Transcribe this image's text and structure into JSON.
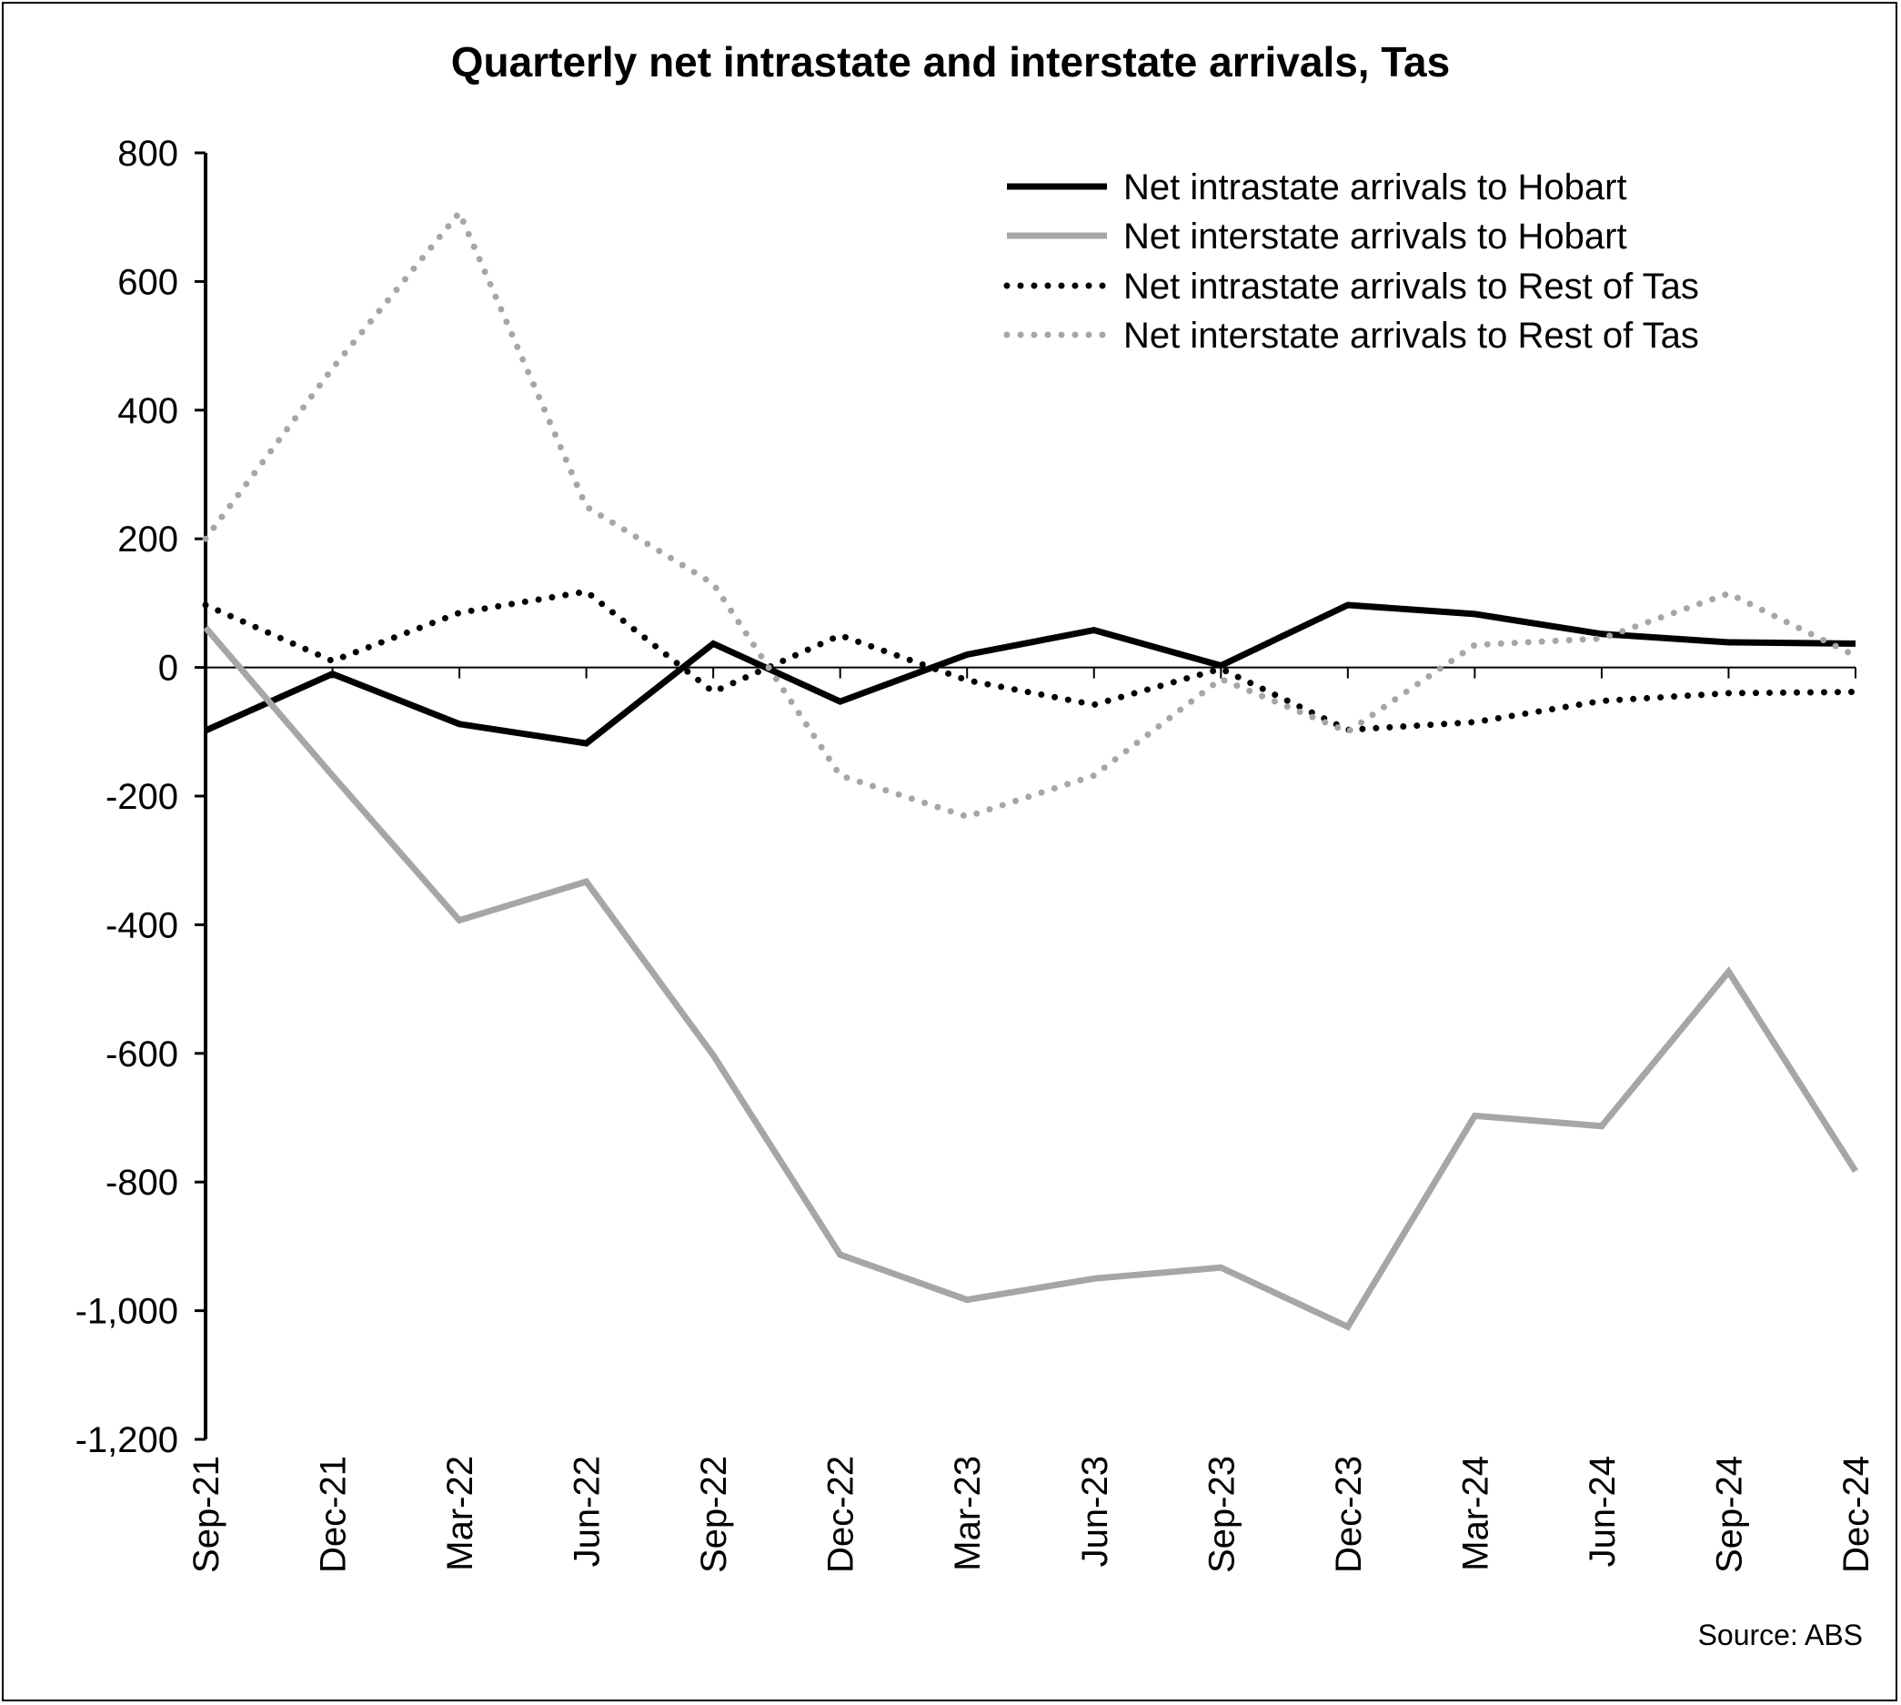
{
  "chart_data": {
    "type": "line",
    "title": "Quarterly net intrastate and interstate arrivals, Tas",
    "source": "Source: ABS",
    "categories": [
      "Sep-21",
      "Dec-21",
      "Mar-22",
      "Jun-22",
      "Sep-22",
      "Dec-22",
      "Mar-23",
      "Jun-23",
      "Sep-23",
      "Dec-23",
      "Mar-24",
      "Jun-24",
      "Sep-24",
      "Dec-24"
    ],
    "ylim": [
      -1200,
      800
    ],
    "yticks": [
      800,
      600,
      400,
      200,
      0,
      -200,
      -400,
      -600,
      -800,
      -1000,
      -1200
    ],
    "ytick_labels": [
      "800",
      "600",
      "400",
      "200",
      "0",
      "-200",
      "-400",
      "-600",
      "-800",
      "-1,000",
      "-1,200"
    ],
    "grid": false,
    "legend_position": "top-right",
    "series": [
      {
        "name": "Net intrastate arrivals to Hobart",
        "color": "#000000",
        "style": "solid",
        "values": [
          -98,
          -10,
          -88,
          -118,
          37,
          -53,
          20,
          58,
          3,
          97,
          83,
          52,
          39,
          37
        ]
      },
      {
        "name": "Net interstate arrivals to Hobart",
        "color": "#a6a6a6",
        "style": "solid",
        "values": [
          62,
          -168,
          -393,
          -333,
          -603,
          -913,
          -983,
          -950,
          -933,
          -1025,
          -697,
          -713,
          -473,
          -783
        ]
      },
      {
        "name": "Net intrastate arrivals to Rest of Tas",
        "color": "#000000",
        "style": "dotted",
        "values": [
          97,
          10,
          85,
          118,
          -38,
          50,
          -20,
          -58,
          -2,
          -97,
          -85,
          -52,
          -40,
          -38
        ]
      },
      {
        "name": "Net interstate arrivals to Rest of Tas",
        "color": "#a6a6a6",
        "style": "dotted",
        "values": [
          200,
          465,
          707,
          250,
          130,
          -168,
          -232,
          -168,
          -18,
          -100,
          35,
          45,
          115,
          18
        ]
      }
    ]
  }
}
